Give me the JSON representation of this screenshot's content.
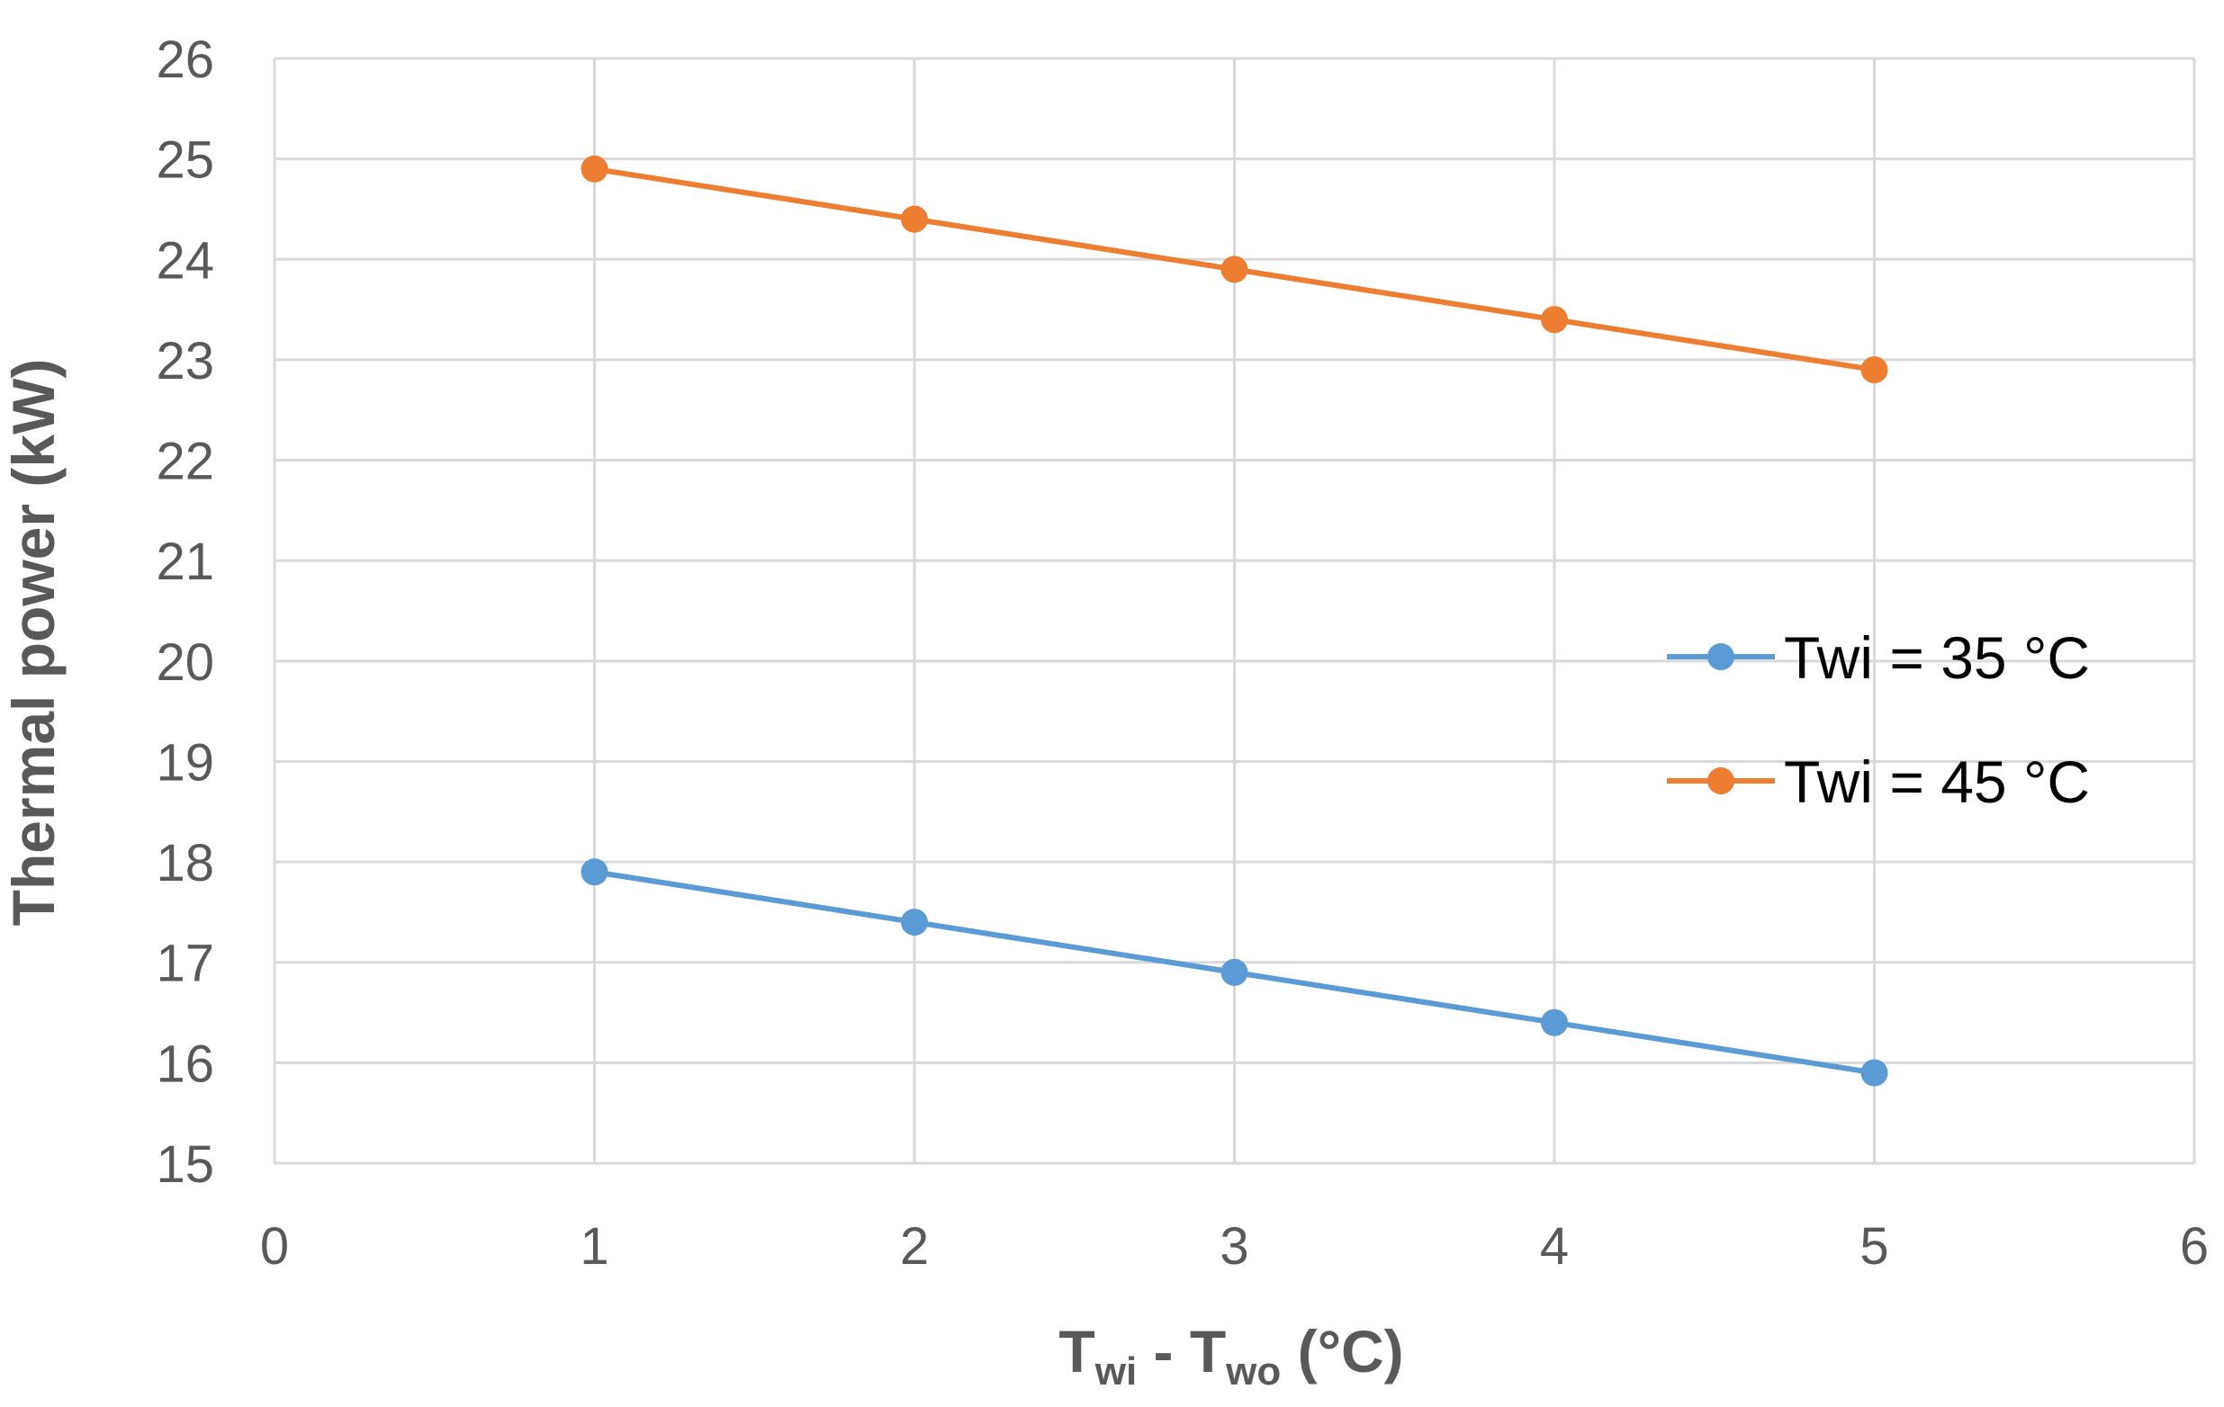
{
  "chart_data": {
    "type": "line",
    "title": "",
    "xlabel": {
      "main": "T",
      "sub1": "wi",
      "mid": " - T",
      "sub2": "wo",
      "end": " (°C)"
    },
    "ylabel": "Thermal power (kW)",
    "xlim": [
      0,
      6
    ],
    "ylim": [
      15,
      26
    ],
    "xticks": [
      "0",
      "1",
      "2",
      "3",
      "4",
      "5",
      "6"
    ],
    "yticks": [
      "15",
      "16",
      "17",
      "18",
      "19",
      "20",
      "21",
      "22",
      "23",
      "24",
      "25",
      "26"
    ],
    "grid": true,
    "legend_position": "right",
    "x": [
      1,
      2,
      3,
      4,
      5
    ],
    "series": [
      {
        "name": "Twi = 35 °C",
        "color": "#5b9bd5",
        "values": [
          17.9,
          17.4,
          16.9,
          16.4,
          15.9
        ]
      },
      {
        "name": "Twi = 45 °C",
        "color": "#ed7d31",
        "values": [
          24.9,
          24.4,
          23.9,
          23.4,
          22.9
        ]
      }
    ]
  }
}
